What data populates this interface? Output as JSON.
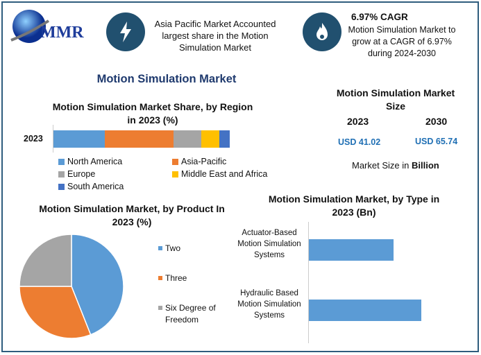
{
  "logo": {
    "text": "MMR"
  },
  "highlights": [
    {
      "icon": "lightning-icon",
      "text": "Asia Pacific Market Accounted largest share in the Motion Simulation Market"
    },
    {
      "icon": "flame-icon",
      "heading": "6.97% CAGR",
      "text": "Motion Simulation Market to grow at a CAGR of 6.97% during 2024-2030"
    }
  ],
  "main_title": "Motion Simulation Market",
  "market_size": {
    "title": "Motion Simulation Market Size",
    "years": [
      "2023",
      "2030"
    ],
    "values": [
      "USD 41.02",
      "USD 65.74"
    ],
    "note_prefix": "Market Size in ",
    "note_bold": "Billion",
    "accent": "#1f6fb4"
  },
  "chart_data": [
    {
      "type": "bar",
      "orientation": "horizontal-stacked",
      "title": "Motion Simulation Market Share, by Region in 2023 (%)",
      "categories": [
        "2023"
      ],
      "series": [
        {
          "name": "North America",
          "values": [
            29
          ],
          "color": "#5b9bd5"
        },
        {
          "name": "Asia-Pacific",
          "values": [
            39
          ],
          "color": "#ed7d31"
        },
        {
          "name": "Europe",
          "values": [
            16
          ],
          "color": "#a5a5a5"
        },
        {
          "name": "Middle East and Africa",
          "values": [
            10
          ],
          "color": "#ffc000"
        },
        {
          "name": "South America",
          "values": [
            6
          ],
          "color": "#4472c4"
        }
      ],
      "legend": "bottom"
    },
    {
      "type": "pie",
      "title": "Motion Simulation Market, by Product In 2023 (%)",
      "labels": [
        "Two",
        "Three",
        "Six Degree of Freedom"
      ],
      "values": [
        44,
        31,
        25
      ],
      "colors": [
        "#5b9bd5",
        "#ed7d31",
        "#a5a5a5"
      ],
      "legend": "right"
    },
    {
      "type": "bar",
      "orientation": "horizontal",
      "title": "Motion Simulation Market, by Type in 2023 (Bn)",
      "categories": [
        "Actuator-Based Motion Simulation Systems",
        "Hydraulic Based Motion Simulation Systems"
      ],
      "values": [
        30,
        40
      ],
      "color": "#5b9bd5"
    }
  ]
}
